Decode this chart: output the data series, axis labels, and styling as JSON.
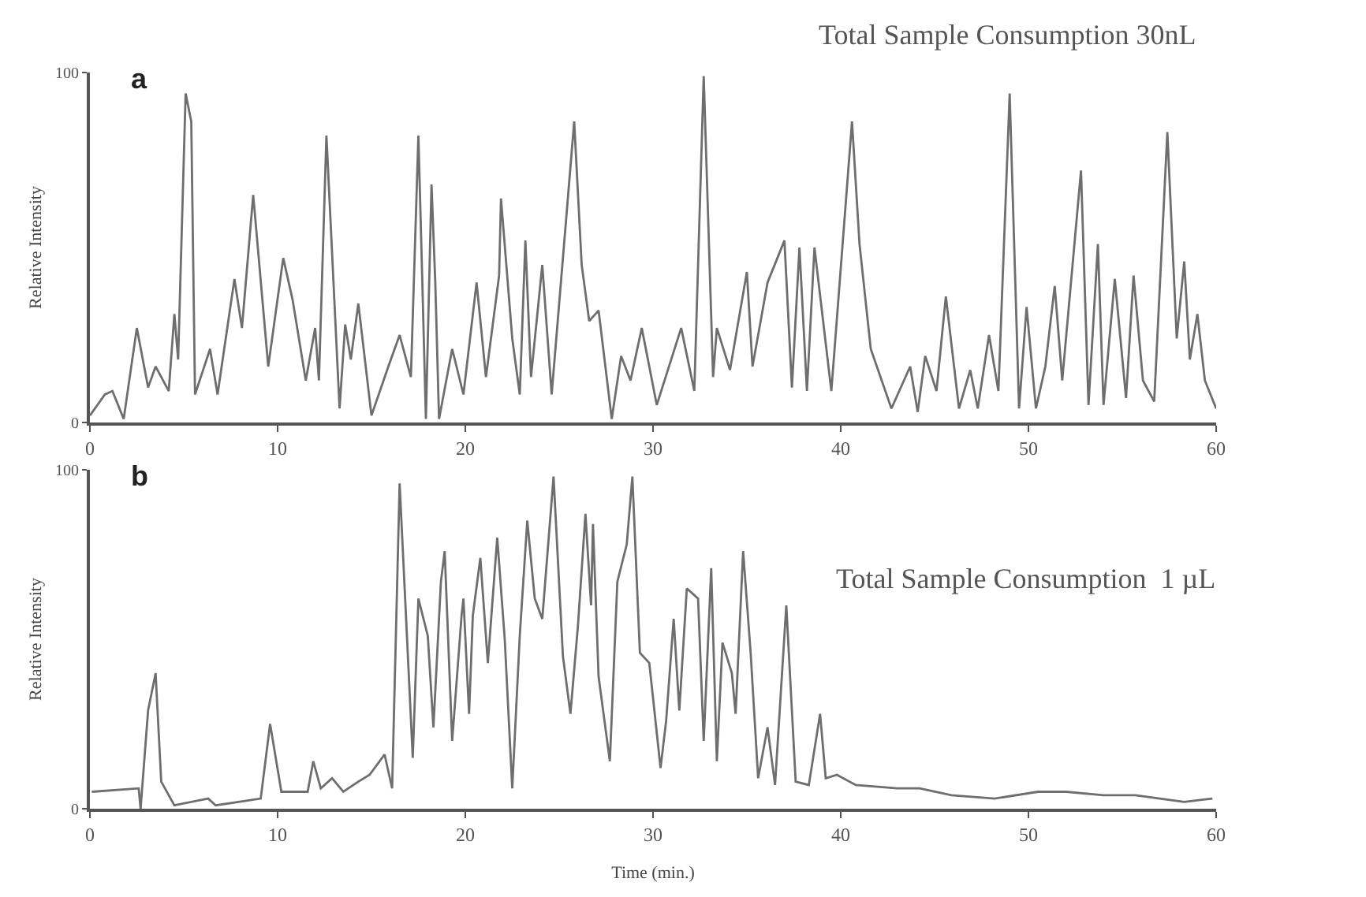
{
  "chart_data": [
    {
      "type": "line",
      "title": "Total Sample Consumption 30nL",
      "ylabel": "Relative Intensity",
      "annotations": [
        "a"
      ],
      "xlim": [
        0,
        60
      ],
      "xticks": [
        0,
        10,
        20,
        30,
        40,
        50,
        60
      ],
      "ylim": [
        0,
        100
      ],
      "yticks": [
        0,
        100
      ],
      "series": [
        {
          "color": "#6e6e6e",
          "x": [
            0,
            0.4,
            0.8,
            1.2,
            1.8,
            2.5,
            3.1,
            3.5,
            4.2,
            4.5,
            4.7,
            5.1,
            5.4,
            5.6,
            6.4,
            6.8,
            7.7,
            8.1,
            8.7,
            9.5,
            10.3,
            10.8,
            11.5,
            12.0,
            12.2,
            12.6,
            13.3,
            13.6,
            13.9,
            14.3,
            15.0,
            15.9,
            16.5,
            17.1,
            17.5,
            17.7,
            17.9,
            18.2,
            18.4,
            18.6,
            19.3,
            19.9,
            20.6,
            21.1,
            21.8,
            21.9,
            22.5,
            22.9,
            23.2,
            23.5,
            24.1,
            24.6,
            25.8,
            26.2,
            26.6,
            27.1,
            27.8,
            28.3,
            28.8,
            29.4,
            30.2,
            31.5,
            32.2,
            32.7,
            33.2,
            33.4,
            34.1,
            35.0,
            35.3,
            36.1,
            37.0,
            37.4,
            37.8,
            38.2,
            38.6,
            39.5,
            40.6,
            41.0,
            41.6,
            42.7,
            43.7,
            44.1,
            44.5,
            45.1,
            45.6,
            46.3,
            46.9,
            47.3,
            47.9,
            48.4,
            49.0,
            49.5,
            49.9,
            50.4,
            50.9,
            51.4,
            51.8,
            52.8,
            53.2,
            53.7,
            54.0,
            54.6,
            55.2,
            55.6,
            56.1,
            56.7,
            57.4,
            57.9,
            58.3,
            58.6,
            59.0,
            59.4,
            60.0
          ],
          "values": [
            2,
            5,
            8,
            9,
            1,
            27,
            10,
            16,
            9,
            31,
            18,
            94,
            86,
            8,
            21,
            8,
            41,
            27,
            65,
            16,
            47,
            35,
            12,
            27,
            12,
            82,
            4,
            28,
            18,
            34,
            2,
            16,
            25,
            13,
            82,
            42,
            1,
            68,
            40,
            1,
            21,
            8,
            40,
            13,
            42,
            64,
            24,
            8,
            52,
            13,
            45,
            8,
            86,
            45,
            29,
            32,
            1,
            19,
            12,
            27,
            5,
            27,
            9,
            99,
            13,
            27,
            15,
            43,
            16,
            40,
            52,
            10,
            50,
            9,
            50,
            9,
            86,
            51,
            21,
            4,
            16,
            3,
            19,
            9,
            36,
            4,
            15,
            4,
            25,
            9,
            94,
            4,
            33,
            4,
            16,
            39,
            12,
            72,
            5,
            51,
            5,
            41,
            7,
            42,
            12,
            6,
            83,
            24,
            46,
            18,
            31,
            12,
            4
          ]
        }
      ]
    },
    {
      "type": "line",
      "title": "Total Sample Consumption  1 µL",
      "xlabel": "Time (min.)",
      "ylabel": "Relative Intensity",
      "annotations": [
        "b"
      ],
      "xlim": [
        0,
        60
      ],
      "xticks": [
        0,
        10,
        20,
        30,
        40,
        50,
        60
      ],
      "ylim": [
        0,
        100
      ],
      "yticks": [
        0,
        100
      ],
      "series": [
        {
          "color": "#6e6e6e",
          "x": [
            0.1,
            2.6,
            2.7,
            3.1,
            3.5,
            3.8,
            4.5,
            6.3,
            6.7,
            9.1,
            9.6,
            10.2,
            11.6,
            11.9,
            12.3,
            12.9,
            13.5,
            14.3,
            14.9,
            15.7,
            16.1,
            16.5,
            17.2,
            17.5,
            18.0,
            18.3,
            18.7,
            18.9,
            19.3,
            19.8,
            19.9,
            20.2,
            20.4,
            20.8,
            21.2,
            21.7,
            22.1,
            22.5,
            22.9,
            23.3,
            23.7,
            24.1,
            24.7,
            25.2,
            25.6,
            26.0,
            26.4,
            26.7,
            26.8,
            27.1,
            27.7,
            28.1,
            28.6,
            28.9,
            29.3,
            29.8,
            30.4,
            30.7,
            31.1,
            31.4,
            31.8,
            32.4,
            32.7,
            33.1,
            33.4,
            33.7,
            34.2,
            34.4,
            34.8,
            35.2,
            35.6,
            36.1,
            36.5,
            37.1,
            37.6,
            38.3,
            38.9,
            39.2,
            39.8,
            40.8,
            43.0,
            44.2,
            45.9,
            48.2,
            50.5,
            52.0,
            54.0,
            55.7,
            58.3,
            59.8
          ],
          "values": [
            5,
            6,
            0,
            29,
            40,
            8,
            1,
            3,
            1,
            3,
            25,
            5,
            5,
            14,
            6,
            9,
            5,
            8,
            10,
            16,
            6,
            96,
            15,
            62,
            51,
            24,
            67,
            76,
            20,
            57,
            62,
            28,
            57,
            74,
            43,
            80,
            50,
            6,
            51,
            85,
            62,
            56,
            98,
            45,
            28,
            54,
            87,
            60,
            84,
            39,
            14,
            67,
            78,
            98,
            46,
            43,
            12,
            26,
            56,
            29,
            65,
            62,
            20,
            71,
            14,
            49,
            40,
            28,
            76,
            46,
            9,
            24,
            7,
            60,
            8,
            7,
            28,
            9,
            10,
            7,
            6,
            6,
            4,
            3,
            5,
            5,
            4,
            4,
            2,
            3
          ]
        }
      ]
    }
  ]
}
